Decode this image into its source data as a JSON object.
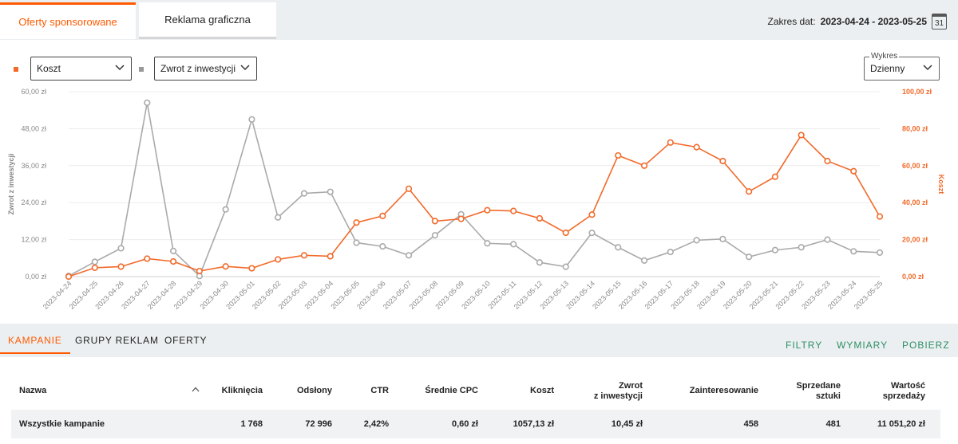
{
  "tabs": [
    {
      "label": "Oferty sponsorowane"
    },
    {
      "label": "Reklama graficzna"
    }
  ],
  "date_range": {
    "label": "Zakres dat:",
    "value": "2023-04-24 - 2023-05-25",
    "calendar_day": "31"
  },
  "controls": {
    "metric1": "Koszt",
    "metric2": "Zwrot z inwestycji",
    "granularity_label": "Wykres",
    "granularity": "Dzienny"
  },
  "colors": {
    "cost": "#f26a2a",
    "roi": "#aaaaaa",
    "accent": "#ff5a00",
    "green": "#2c8f65"
  },
  "chart_data": {
    "type": "line",
    "x": [
      "2023-04-24",
      "2023-04-25",
      "2023-04-26",
      "2023-04-27",
      "2023-04-28",
      "2023-04-29",
      "2023-04-30",
      "2023-05-01",
      "2023-05-02",
      "2023-05-03",
      "2023-05-04",
      "2023-05-05",
      "2023-05-06",
      "2023-05-07",
      "2023-05-08",
      "2023-05-09",
      "2023-05-10",
      "2023-05-11",
      "2023-05-12",
      "2023-05-13",
      "2023-05-14",
      "2023-05-15",
      "2023-05-16",
      "2023-05-17",
      "2023-05-18",
      "2023-05-19",
      "2023-05-20",
      "2023-05-21",
      "2023-05-22",
      "2023-05-23",
      "2023-05-24",
      "2023-05-25"
    ],
    "series": [
      {
        "name": "Zwrot z inwestycji",
        "axis": "left",
        "values": [
          0.2,
          4.8,
          9.2,
          56.4,
          8.3,
          0.2,
          21.8,
          51.0,
          19.2,
          27.0,
          27.5,
          11.0,
          9.8,
          6.9,
          13.4,
          20.2,
          10.8,
          10.5,
          4.6,
          3.2,
          14.2,
          9.5,
          5.2,
          8.0,
          11.8,
          12.2,
          6.4,
          8.6,
          9.5,
          12.0,
          8.2,
          7.8
        ]
      },
      {
        "name": "Koszt",
        "axis": "right",
        "values": [
          0.0,
          4.8,
          5.4,
          9.7,
          8.2,
          3.0,
          5.5,
          4.5,
          9.3,
          11.5,
          11.0,
          29.2,
          32.8,
          47.5,
          30.0,
          31.2,
          35.9,
          35.5,
          31.5,
          23.7,
          33.5,
          65.5,
          60.0,
          72.5,
          70.0,
          62.5,
          46.0,
          54.0,
          76.5,
          62.5,
          57.0,
          32.5
        ]
      }
    ],
    "y_left": {
      "label": "Zwrot z inwestycji",
      "min": 0,
      "max": 60,
      "ticks": [
        "0,00 zł",
        "12,00 zł",
        "24,00 zł",
        "36,00 zł",
        "48,00 zł",
        "60,00 zł"
      ]
    },
    "y_right": {
      "label": "Koszt",
      "min": 0,
      "max": 100,
      "ticks": [
        "0,00 zł",
        "20,00 zł",
        "40,00 zł",
        "60,00 zł",
        "80,00 zł",
        "100,00 zł"
      ]
    }
  },
  "subtabs": [
    "KAMPANIE",
    "GRUPY REKLAM",
    "OFERTY"
  ],
  "actions": [
    "FILTRY",
    "WYMIARY",
    "POBIERZ"
  ],
  "table": {
    "headers": {
      "name": "Nazwa",
      "clicks": "Kliknięcia",
      "views": "Odsłony",
      "ctr": "CTR",
      "cpc": "Średnie CPC",
      "cost": "Koszt",
      "roi_1": "Zwrot",
      "roi_2": "z inwestycji",
      "interest": "Zainteresowanie",
      "sold_1": "Sprzedane",
      "sold_2": "sztuki",
      "value_1": "Wartość",
      "value_2": "sprzedaży"
    },
    "total": {
      "name": "Wszystkie kampanie",
      "clicks": "1 768",
      "views": "72 996",
      "ctr": "2,42%",
      "cpc": "0,60 zł",
      "cost": "1057,13 zł",
      "roi": "10,45 zł",
      "interest": "458",
      "sold": "481",
      "value": "11 051,20 zł"
    }
  }
}
